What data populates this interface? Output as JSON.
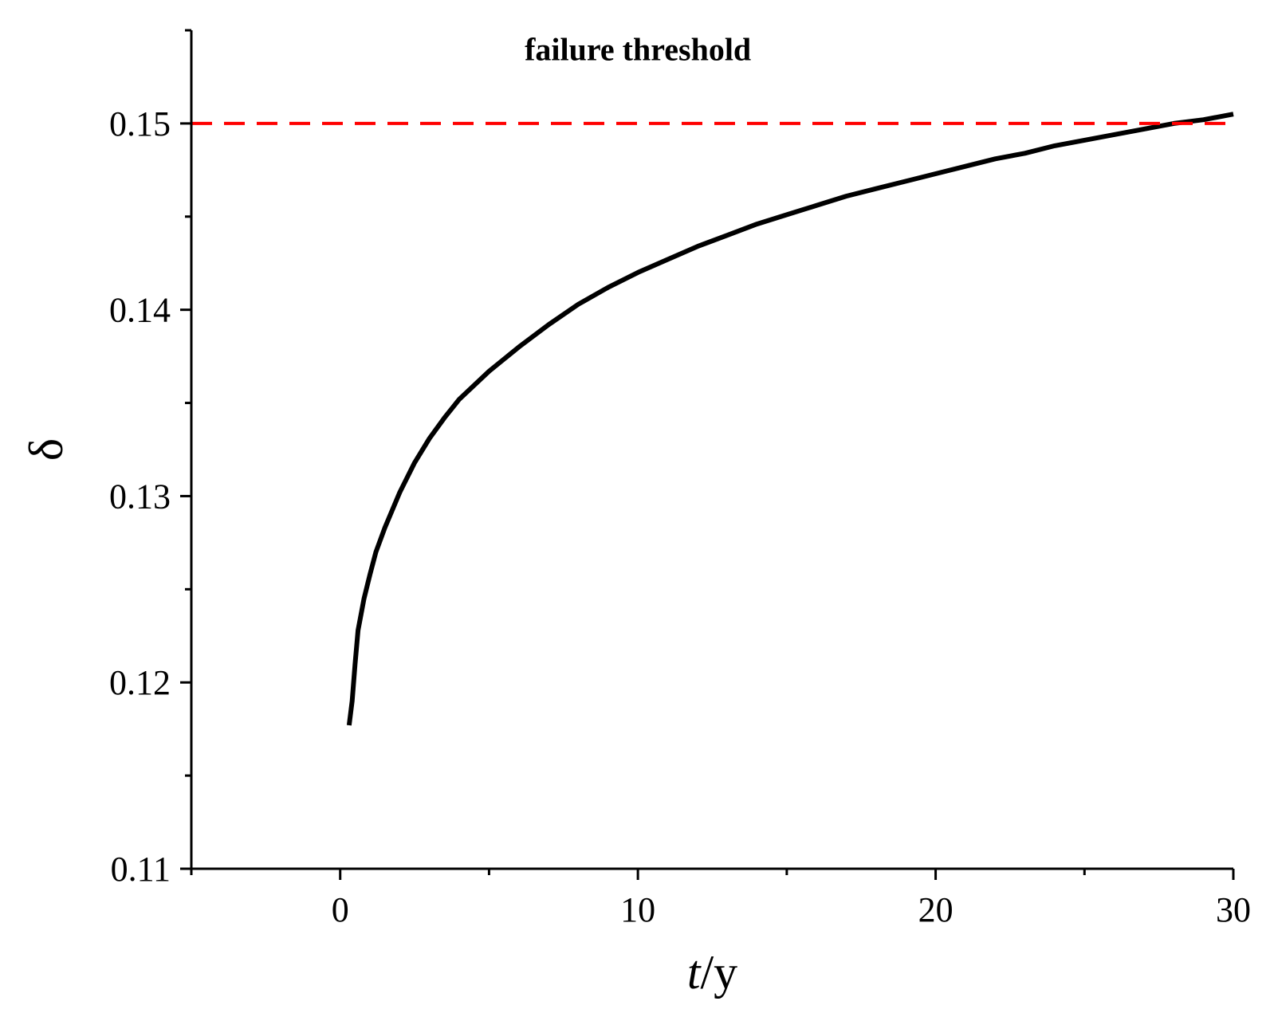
{
  "chart_data": {
    "type": "line",
    "xlabel_italic": "t",
    "xlabel_rest": "/y",
    "ylabel": "δ",
    "xlim": [
      -5,
      30
    ],
    "ylim": [
      0.11,
      0.155
    ],
    "x_ticks": [
      0,
      10,
      20,
      30
    ],
    "x_minor_ticks": [
      -5,
      5,
      15,
      25
    ],
    "y_ticks": [
      0.11,
      0.12,
      0.13,
      0.14,
      0.15
    ],
    "y_tick_labels": [
      "0.11",
      "0.12",
      "0.13",
      "0.14",
      "0.15"
    ],
    "y_minor_ticks": [
      0.115,
      0.125,
      0.135,
      0.145,
      0.155
    ],
    "grid": false,
    "series": [
      {
        "color": "#000000",
        "style": "solid",
        "x": [
          0.3,
          0.4,
          0.5,
          0.6,
          0.8,
          1.0,
          1.2,
          1.5,
          2.0,
          2.5,
          3.0,
          3.5,
          4.0,
          5.0,
          6.0,
          7.0,
          8.0,
          9.0,
          10.0,
          11.0,
          12.0,
          13.0,
          14.0,
          15.0,
          16.0,
          17.0,
          18.0,
          19.0,
          20.0,
          21.0,
          22.0,
          23.0,
          24.0,
          25.0,
          26.0,
          27.0,
          28.0,
          29.0,
          30.0
        ],
        "y": [
          0.1177,
          0.119,
          0.121,
          0.1228,
          0.1245,
          0.1258,
          0.127,
          0.1283,
          0.1302,
          0.1318,
          0.1331,
          0.1342,
          0.1352,
          0.1367,
          0.138,
          0.1392,
          0.1403,
          0.1412,
          0.142,
          0.1427,
          0.1434,
          0.144,
          0.1446,
          0.1451,
          0.1456,
          0.1461,
          0.1465,
          0.1469,
          0.1473,
          0.1477,
          0.1481,
          0.1484,
          0.1488,
          0.1491,
          0.1494,
          0.1497,
          0.15,
          0.1502,
          0.1505
        ]
      },
      {
        "color": "#ff0000",
        "style": "dashed",
        "x": [
          -5,
          30
        ],
        "y": [
          0.15,
          0.15
        ]
      }
    ],
    "annotations": [
      {
        "text": "failure threshold",
        "x": 10,
        "y": 0.1534
      }
    ]
  }
}
